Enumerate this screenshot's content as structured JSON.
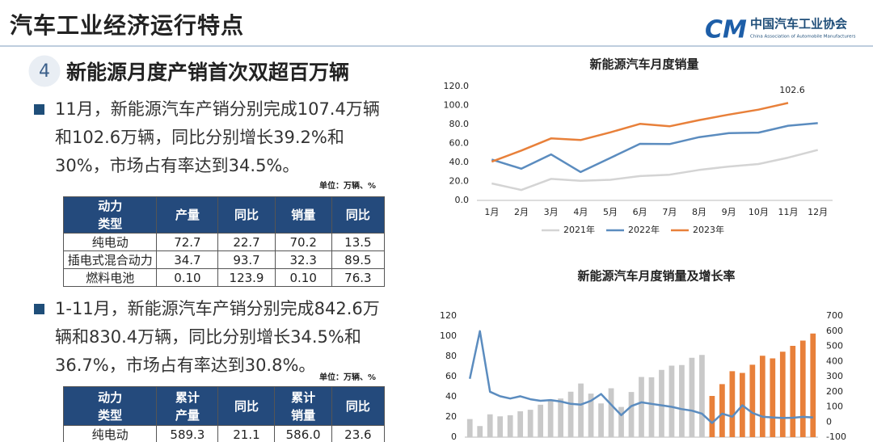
{
  "header": {
    "title": "汽车工业经济运行特点",
    "org_name": "中国汽车工业协会",
    "org_name_en": "China Association of Automobile Manufacturers"
  },
  "section": {
    "number": "4",
    "title": "新能源月度产销首次双超百万辆"
  },
  "bullets": [
    {
      "text": "11月，新能源汽车产销分别完成107.4万辆和102.6万辆，同比分别增长39.2%和30%，市场占有率达到34.5%。",
      "unit": "单位：万辆、%",
      "table": {
        "header": [
          "动力类型",
          "产量",
          "同比",
          "销量",
          "同比"
        ],
        "rows": [
          [
            "纯电动",
            "72.7",
            "22.7",
            "70.2",
            "13.5"
          ],
          [
            "插电式混合动力",
            "34.7",
            "93.7",
            "32.3",
            "89.5"
          ],
          [
            "燃料电池",
            "0.10",
            "123.9",
            "0.10",
            "76.3"
          ]
        ]
      }
    },
    {
      "text": "1-11月，新能源汽车产销分别完成842.6万辆和830.4万辆，同比分别增长34.5%和36.7%，市场占有率达到30.8%。",
      "unit": "单位：万辆、%",
      "table": {
        "header": [
          "动力类型",
          "累计产量",
          "同比",
          "累计销量",
          "同比"
        ],
        "rows": [
          [
            "纯电动",
            "589.3",
            "21.1",
            "586.0",
            "23.6"
          ]
        ]
      }
    }
  ],
  "chart_data": [
    {
      "type": "line",
      "title": "新能源汽车月度销量",
      "categories": [
        "1月",
        "2月",
        "3月",
        "4月",
        "5月",
        "6月",
        "7月",
        "8月",
        "9月",
        "10月",
        "11月",
        "12月"
      ],
      "series": [
        {
          "name": "2021年",
          "color": "#d4d4d4",
          "values": [
            17.9,
            11.0,
            22.6,
            20.6,
            21.7,
            25.6,
            27.1,
            32.1,
            35.7,
            38.3,
            45.0,
            53.1
          ]
        },
        {
          "name": "2022年",
          "color": "#5b8cbf",
          "values": [
            43.1,
            33.4,
            48.4,
            29.9,
            44.7,
            59.6,
            59.3,
            66.6,
            70.8,
            71.4,
            78.6,
            81.4
          ]
        },
        {
          "name": "2023年",
          "color": "#e8803a",
          "values": [
            40.8,
            52.5,
            65.3,
            63.6,
            71.7,
            80.6,
            78.0,
            84.6,
            90.4,
            95.6,
            102.6,
            null
          ]
        }
      ],
      "annotation": "102.6",
      "ylim": [
        0,
        120
      ],
      "yticks": [
        {
          "value": 0,
          "label": "0.0"
        },
        {
          "value": 20,
          "label": "20.0"
        },
        {
          "value": 40,
          "label": "40.0"
        },
        {
          "value": 60,
          "label": "60.0"
        },
        {
          "value": 80,
          "label": "80.0"
        },
        {
          "value": 100,
          "label": "100.0"
        },
        {
          "value": 120,
          "label": "120.0"
        }
      ],
      "legend": "bottom",
      "grid": false
    },
    {
      "type": "combo",
      "title": "新能源汽车月度销量及增长率",
      "series": [
        {
          "type": "bar",
          "color": "#c9c9c9",
          "values": [
            17.9,
            11.0,
            22.6,
            20.6,
            21.7,
            25.6,
            27.1,
            32.1,
            35.7,
            38.3,
            45.0,
            53.1,
            43.1,
            33.4,
            48.4,
            29.9,
            44.7,
            59.6,
            59.3,
            66.6,
            70.8,
            71.4,
            78.6,
            81.4,
            null,
            null,
            null,
            null,
            null,
            null,
            null,
            null,
            null,
            null,
            null
          ]
        },
        {
          "type": "bar",
          "color": "#e8803a",
          "values": [
            null,
            null,
            null,
            null,
            null,
            null,
            null,
            null,
            null,
            null,
            null,
            null,
            null,
            null,
            null,
            null,
            null,
            null,
            null,
            null,
            null,
            null,
            null,
            null,
            40.8,
            52.5,
            65.3,
            63.6,
            71.7,
            80.6,
            78.0,
            84.6,
            90.4,
            95.6,
            102.6
          ]
        },
        {
          "type": "line",
          "axis": "y2",
          "color": "#5b8cbf",
          "values": [
            285,
            600,
            200,
            170,
            155,
            170,
            150,
            140,
            145,
            135,
            120,
            115,
            140,
            185,
            115,
            45,
            105,
            130,
            120,
            110,
            100,
            85,
            75,
            55,
            -6,
            55,
            35,
            110,
            60,
            35,
            30,
            27,
            28,
            34,
            30
          ]
        }
      ],
      "ylim": [
        0,
        120
      ],
      "yticks": [
        0,
        20,
        40,
        60,
        80,
        100,
        120
      ],
      "y2lim": [
        -100,
        700
      ],
      "y2ticks": [
        -100,
        0,
        100,
        200,
        300,
        400,
        500,
        600,
        700
      ],
      "grid": false
    }
  ]
}
